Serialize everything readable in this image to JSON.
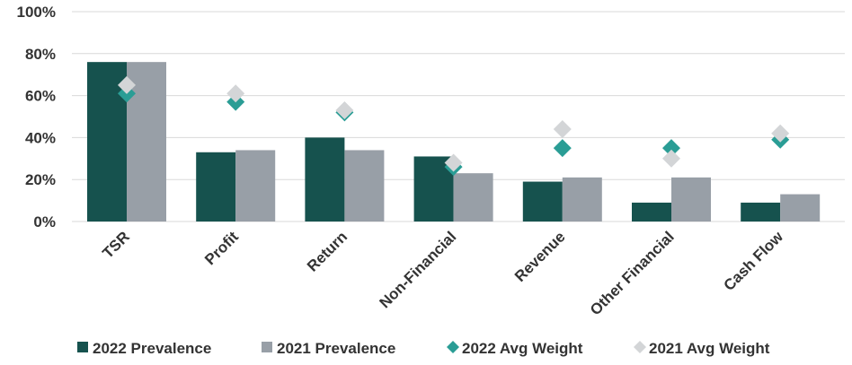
{
  "chart_data": {
    "type": "bar",
    "categories": [
      "TSR",
      "Profit",
      "Return",
      "Non-Financial",
      "Revenue",
      "Other Financial",
      "Cash Flow"
    ],
    "series": [
      {
        "name": "2022 Prevalence",
        "kind": "bar",
        "color": "#16524E",
        "values": [
          76,
          33,
          40,
          31,
          19,
          9,
          9
        ]
      },
      {
        "name": "2021 Prevalence",
        "kind": "bar",
        "color": "#989FA7",
        "values": [
          76,
          34,
          34,
          23,
          21,
          21,
          13
        ]
      },
      {
        "name": "2022 Avg Weight",
        "kind": "marker",
        "color": "#2A9D95",
        "values": [
          61,
          57,
          52,
          26,
          35,
          35,
          39
        ]
      },
      {
        "name": "2021 Avg Weight",
        "kind": "marker",
        "color": "#D3D5D7",
        "values": [
          65,
          61,
          53,
          28,
          44,
          30,
          42
        ]
      }
    ],
    "yticks": [
      "0%",
      "20%",
      "40%",
      "60%",
      "80%",
      "100%"
    ],
    "ylim": [
      0,
      100
    ],
    "grid": true,
    "legend_position": "bottom"
  }
}
